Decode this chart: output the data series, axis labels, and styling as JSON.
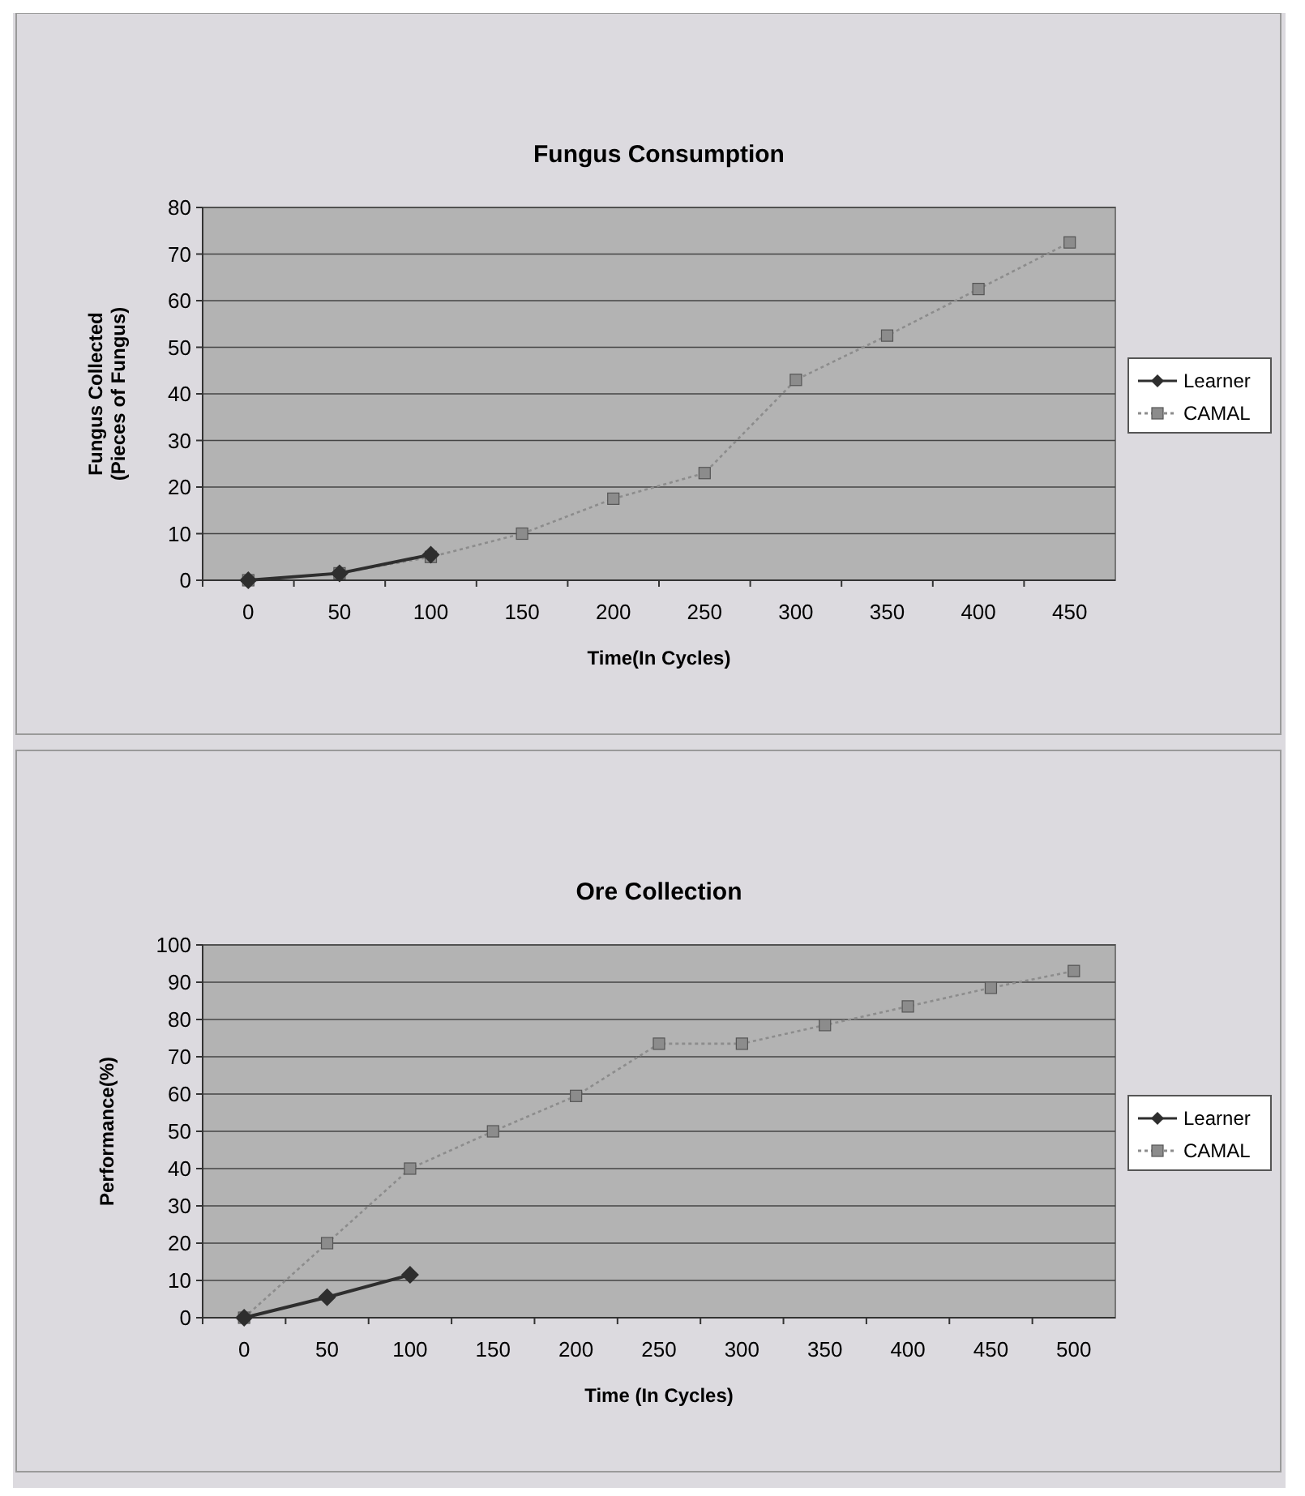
{
  "chart_data": [
    {
      "type": "line",
      "title": "Fungus Consumption",
      "xlabel": "Time(In Cycles)",
      "ylabel": "Fungus Collected\n(Pieces of Fungus)",
      "categories": [
        "0",
        "50",
        "100",
        "150",
        "200",
        "250",
        "300",
        "350",
        "400",
        "450"
      ],
      "series": [
        {
          "name": "Learner",
          "color": "#2e2e2e",
          "marker": "diamond",
          "line_style": "solid",
          "values": [
            0,
            1.5,
            5.5,
            null,
            null,
            null,
            null,
            null,
            null,
            null
          ]
        },
        {
          "name": "CAMAL",
          "color": "#8c8c8c",
          "marker": "square",
          "line_style": "dotted",
          "values": [
            0,
            1.5,
            5,
            10,
            17.5,
            23,
            43,
            52.5,
            62.5,
            72.5
          ]
        }
      ],
      "ylim": [
        0,
        80
      ],
      "yticks": [
        0,
        10,
        20,
        30,
        40,
        50,
        60,
        70,
        80
      ],
      "grid": "y",
      "legend": "right"
    },
    {
      "type": "line",
      "title": "Ore Collection",
      "xlabel": "Time (In Cycles)",
      "ylabel": "Performance(%)",
      "categories": [
        "0",
        "50",
        "100",
        "150",
        "200",
        "250",
        "300",
        "350",
        "400",
        "450",
        "500"
      ],
      "series": [
        {
          "name": "Learner",
          "color": "#2e2e2e",
          "marker": "diamond",
          "line_style": "solid",
          "values": [
            0,
            5.5,
            11.5,
            null,
            null,
            null,
            null,
            null,
            null,
            null,
            null
          ]
        },
        {
          "name": "CAMAL",
          "color": "#8c8c8c",
          "marker": "square",
          "line_style": "dotted",
          "values": [
            0,
            20,
            40,
            50,
            59.5,
            73.5,
            73.5,
            78.5,
            83.5,
            88.5,
            93
          ]
        }
      ],
      "ylim": [
        0,
        100
      ],
      "yticks": [
        0,
        10,
        20,
        30,
        40,
        50,
        60,
        70,
        80,
        90,
        100
      ],
      "grid": "y",
      "legend": "right"
    }
  ]
}
